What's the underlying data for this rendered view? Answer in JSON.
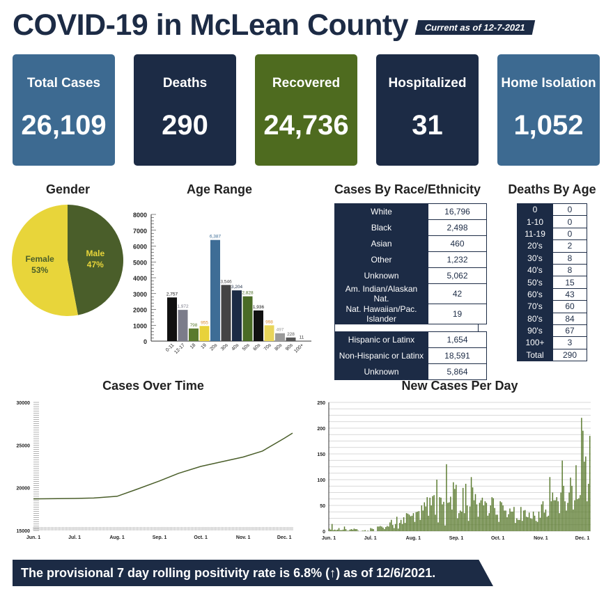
{
  "header": {
    "title": "COVID-19 in McLean County",
    "as_of": "Current as of 12-7-2021"
  },
  "cards": [
    {
      "label": "Total Cases",
      "value": "26,109",
      "color": "#3d6a91"
    },
    {
      "label": "Deaths",
      "value": "290",
      "color": "#1c2b45"
    },
    {
      "label": "Recovered",
      "value": "24,736",
      "color": "#4e6b1f"
    },
    {
      "label": "Hospitalized",
      "value": "31",
      "color": "#1c2b45"
    },
    {
      "label": "Home Isolation",
      "value": "1,052",
      "color": "#3d6a91"
    }
  ],
  "chart_data": [
    {
      "type": "pie",
      "title": "Gender",
      "slices": [
        {
          "label": "Male",
          "value": 47,
          "display": "47%",
          "color": "#4a5e2a"
        },
        {
          "label": "Female",
          "value": 53,
          "display": "53%",
          "color": "#e8d53a"
        }
      ]
    },
    {
      "type": "bar",
      "title": "Age Range",
      "categories": [
        "0-11",
        "12-17",
        "18",
        "19",
        "20s",
        "30s",
        "40s",
        "50s",
        "60s",
        "70s",
        "80s",
        "90s",
        "100+"
      ],
      "values": [
        2757,
        1972,
        798,
        955,
        6387,
        3546,
        3204,
        2828,
        1936,
        998,
        497,
        228,
        11
      ],
      "labels": [
        "2,757",
        "1,972",
        "798",
        "955",
        "6,387",
        "3,546",
        "3,204",
        "2,828",
        "1,936",
        "998",
        "497",
        "228",
        "11"
      ],
      "colors": [
        "#111111",
        "#7b7c8a",
        "#5a7a2e",
        "#e8d23a",
        "#3e6d96",
        "#444444",
        "#1c2b45",
        "#4a6b25",
        "#111111",
        "#e8d55a",
        "#9a9a9a",
        "#555555",
        "#333333"
      ],
      "ylim": [
        0,
        8000
      ],
      "yticks": [
        0,
        1000,
        2000,
        3000,
        4000,
        5000,
        6000,
        7000,
        8000
      ]
    },
    {
      "type": "table",
      "title": "Cases By Race/Ethnicity",
      "rows": [
        [
          "White",
          "16,796"
        ],
        [
          "Black",
          "2,498"
        ],
        [
          "Asian",
          "460"
        ],
        [
          "Other",
          "1,232"
        ],
        [
          "Unknown",
          "5,062"
        ],
        [
          "Am. Indian/Alaskan Nat.",
          "42"
        ],
        [
          "Nat. Hawaiian/Pac. Islander",
          "19"
        ]
      ],
      "rows2": [
        [
          "Hispanic or Latinx",
          "1,654"
        ],
        [
          "Non-Hispanic or Latinx",
          "18,591"
        ],
        [
          "Unknown",
          "5,864"
        ]
      ]
    },
    {
      "type": "table",
      "title": "Deaths By Age",
      "rows": [
        [
          "0",
          "0"
        ],
        [
          "1-10",
          "0"
        ],
        [
          "11-19",
          "0"
        ],
        [
          "20's",
          "2"
        ],
        [
          "30's",
          "8"
        ],
        [
          "40's",
          "8"
        ],
        [
          "50's",
          "15"
        ],
        [
          "60's",
          "43"
        ],
        [
          "70's",
          "60"
        ],
        [
          "80's",
          "84"
        ],
        [
          "90's",
          "67"
        ],
        [
          "100+",
          "3"
        ],
        [
          "Total",
          "290"
        ]
      ]
    },
    {
      "type": "line",
      "title": "Cases Over Time",
      "xlabels": [
        "Jun. 1",
        "Jul. 1",
        "Aug. 1",
        "Sep. 1",
        "Oct. 1",
        "Nov. 1",
        "Dec. 1"
      ],
      "ylim": [
        15000,
        30000
      ],
      "yticks": [
        15000,
        20000,
        25000,
        30000
      ],
      "color": "#4a5e2a",
      "points": [
        [
          "Jun. 1",
          18700
        ],
        [
          "Jul. 1",
          18750
        ],
        [
          "Jul. 15",
          18800
        ],
        [
          "Aug. 1",
          19000
        ],
        [
          "Aug. 15",
          19800
        ],
        [
          "Sep. 1",
          20800
        ],
        [
          "Sep. 15",
          21700
        ],
        [
          "Oct. 1",
          22500
        ],
        [
          "Oct. 15",
          23000
        ],
        [
          "Nov. 1",
          23600
        ],
        [
          "Nov. 15",
          24300
        ],
        [
          "Dec. 1",
          25800
        ],
        [
          "Dec. 7",
          26400
        ]
      ]
    },
    {
      "type": "bar",
      "title": "New Cases Per Day",
      "xlabels": [
        "Jun. 1",
        "Jul. 1",
        "Aug. 1",
        "Sep. 1",
        "Oct. 1",
        "Nov. 1",
        "Dec. 1"
      ],
      "ylim": [
        0,
        250
      ],
      "yticks": [
        0,
        50,
        100,
        150,
        200,
        250
      ],
      "color": "#5a7a2e",
      "start": "Jun. 1",
      "values": [
        5,
        3,
        14,
        2,
        3,
        2,
        3,
        6,
        2,
        2,
        3,
        9,
        4,
        1,
        1,
        3,
        4,
        3,
        5,
        4,
        4,
        1,
        0,
        0,
        1,
        1,
        2,
        0,
        1,
        0,
        6,
        5,
        4,
        0,
        0,
        9,
        9,
        10,
        9,
        7,
        4,
        8,
        10,
        9,
        17,
        22,
        12,
        6,
        14,
        28,
        5,
        16,
        22,
        14,
        27,
        16,
        35,
        34,
        32,
        29,
        30,
        35,
        18,
        37,
        38,
        39,
        22,
        50,
        40,
        56,
        48,
        66,
        30,
        65,
        50,
        68,
        70,
        32,
        100,
        17,
        66,
        65,
        52,
        57,
        11,
        130,
        55,
        56,
        67,
        42,
        95,
        82,
        90,
        25,
        35,
        40,
        38,
        84,
        35,
        92,
        50,
        20,
        48,
        105,
        85,
        60,
        72,
        52,
        28,
        55,
        60,
        65,
        50,
        58,
        55,
        30,
        35,
        50,
        66,
        64,
        45,
        32,
        32,
        18,
        58,
        56,
        50,
        40,
        40,
        27,
        33,
        44,
        38,
        38,
        47,
        16,
        25,
        22,
        22,
        47,
        20,
        40,
        41,
        28,
        27,
        36,
        25,
        24,
        38,
        30,
        20,
        18,
        38,
        26,
        52,
        58,
        36,
        42,
        28,
        30,
        105,
        58,
        75,
        60,
        60,
        66,
        58,
        35,
        75,
        137,
        88,
        58,
        40,
        55,
        75,
        104,
        88,
        42,
        60,
        128,
        62,
        64,
        70,
        220,
        195,
        135,
        145,
        58,
        92,
        185
      ]
    }
  ],
  "footer": {
    "text": "The provisional 7 day rolling positivity rate is 6.8% (↑) as of 12/6/2021."
  }
}
